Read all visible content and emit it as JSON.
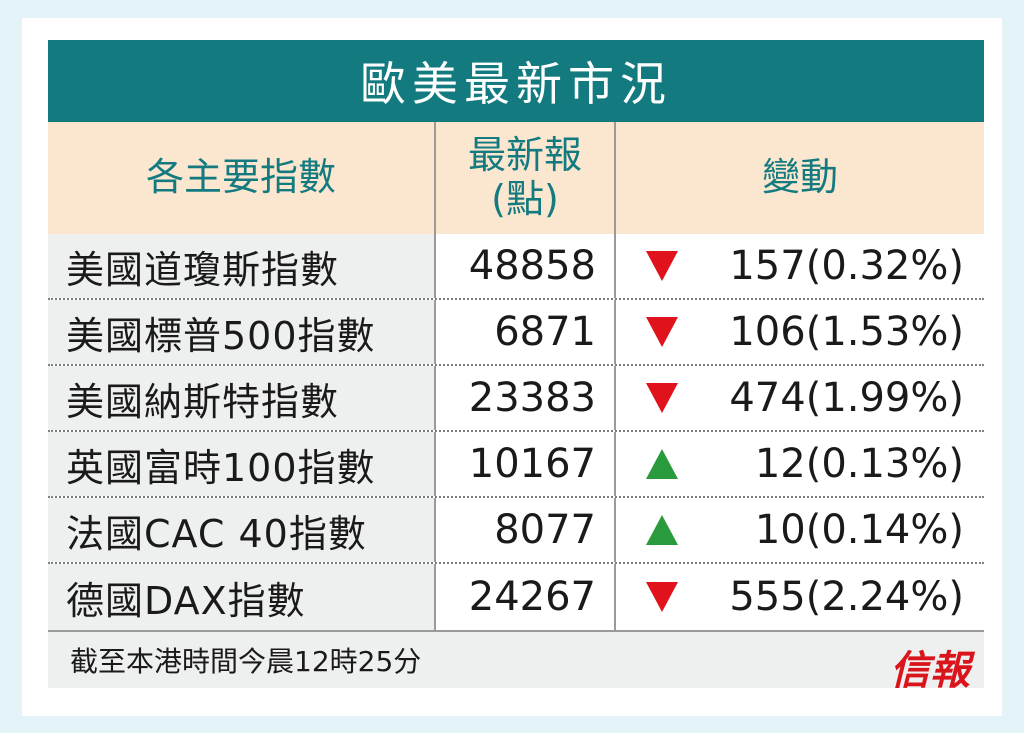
{
  "title": "歐美最新市況",
  "headers": {
    "index": "各主要指數",
    "latest": "最新報\n(點)",
    "latest_line1": "最新報",
    "latest_line2": "(點)",
    "change": "變動"
  },
  "rows": [
    {
      "name": "美國道瓊斯指數",
      "value": "48858",
      "direction": "down",
      "change": "157(0.32%)"
    },
    {
      "name": "美國標普500指數",
      "value": "6871",
      "direction": "down",
      "change": "106(1.53%)"
    },
    {
      "name": "美國納斯特指數",
      "value": "23383",
      "direction": "down",
      "change": "474(1.99%)"
    },
    {
      "name": "英國富時100指數",
      "value": "10167",
      "direction": "up",
      "change": "12(0.13%)"
    },
    {
      "name": "法國CAC 40指數",
      "value": "8077",
      "direction": "up",
      "change": "10(0.14%)"
    },
    {
      "name": "德國DAX指數",
      "value": "24267",
      "direction": "down",
      "change": "555(2.24%)"
    }
  ],
  "footer": {
    "note": "截至本港時間今晨12時25分",
    "logo": "信報"
  },
  "colors": {
    "title_bg": "#137b80",
    "header_bg": "#fbe6cf",
    "down": "#e0121b",
    "up": "#2a9b3c"
  }
}
